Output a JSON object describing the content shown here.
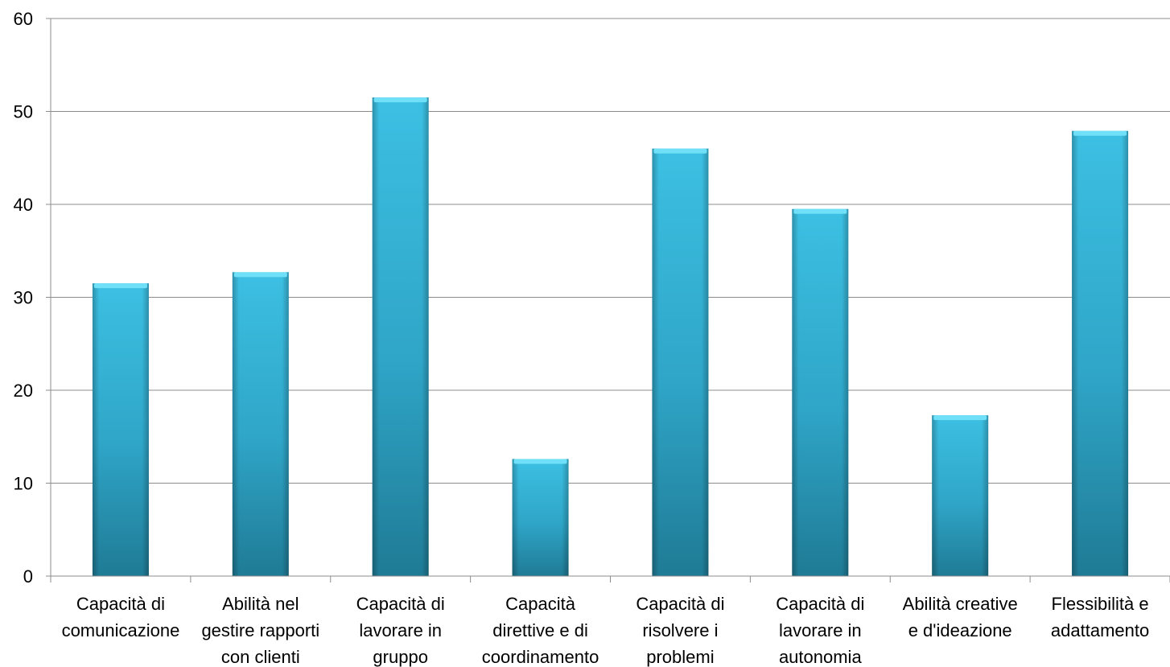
{
  "chart_data": {
    "type": "bar",
    "title": "",
    "xlabel": "",
    "ylabel": "",
    "ylim": [
      0,
      60
    ],
    "yticks": [
      0,
      10,
      20,
      30,
      40,
      50,
      60
    ],
    "grid": true,
    "legend": "none",
    "bar_color": "#35b6d9",
    "bar_color_dark": "#1f7f99",
    "categories": [
      [
        "Capacità di",
        "comunicazione"
      ],
      [
        "Abilità nel",
        "gestire rapporti",
        "con clienti"
      ],
      [
        "Capacità di",
        "lavorare in",
        "gruppo"
      ],
      [
        "Capacità",
        "direttive e di",
        "coordinamento"
      ],
      [
        "Capacità di",
        "risolvere i",
        "problemi"
      ],
      [
        "Capacità di",
        "lavorare in",
        "autonomia"
      ],
      [
        "Abilità creative",
        "e d'ideazione"
      ],
      [
        "Flessibilità e",
        "adattamento"
      ]
    ],
    "values": [
      31.5,
      32.7,
      51.5,
      12.6,
      46,
      39.5,
      17.3,
      47.9
    ]
  }
}
